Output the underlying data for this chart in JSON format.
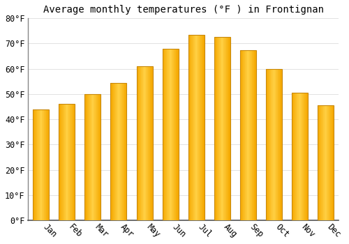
{
  "title": "Average monthly temperatures (°F ) in Frontignan",
  "months": [
    "Jan",
    "Feb",
    "Mar",
    "Apr",
    "May",
    "Jun",
    "Jul",
    "Aug",
    "Sep",
    "Oct",
    "Nov",
    "Dec"
  ],
  "values": [
    44,
    46,
    50,
    54.5,
    61,
    68,
    73.5,
    72.5,
    67.5,
    60,
    50.5,
    45.5
  ],
  "bar_color_center": "#FFD044",
  "bar_color_edge": "#F5A800",
  "bar_outline_color": "#C8880A",
  "background_color": "#FFFFFF",
  "grid_color": "#DDDDDD",
  "ylim": [
    0,
    80
  ],
  "yticks": [
    0,
    10,
    20,
    30,
    40,
    50,
    60,
    70,
    80
  ],
  "ytick_labels": [
    "0°F",
    "10°F",
    "20°F",
    "30°F",
    "40°F",
    "50°F",
    "60°F",
    "70°F",
    "80°F"
  ],
  "title_fontsize": 10,
  "tick_fontsize": 8.5,
  "font_family": "monospace",
  "bar_width": 0.62
}
